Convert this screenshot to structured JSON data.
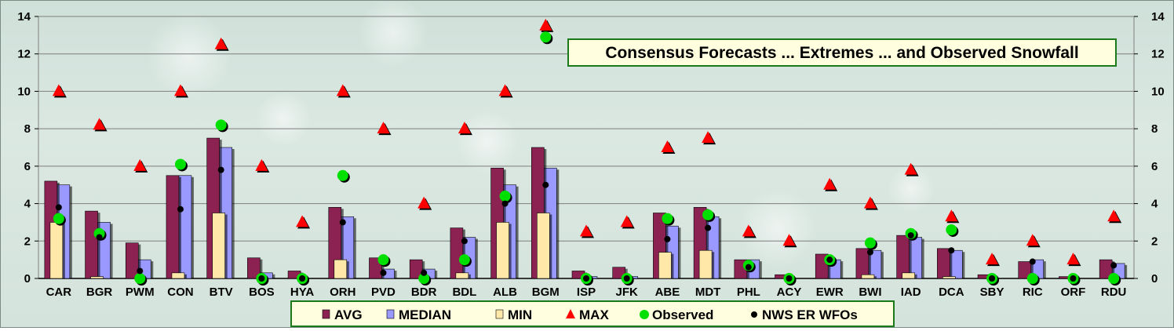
{
  "chart_data": {
    "type": "bar",
    "title": "Consensus Forecasts ... Extremes ... and Observed Snowfall",
    "ylim": [
      0,
      14
    ],
    "yticks": [
      0,
      2,
      4,
      6,
      8,
      10,
      12,
      14
    ],
    "grid": true,
    "legend_position": "bottom",
    "categories": [
      "CAR",
      "BGR",
      "PWM",
      "CON",
      "BTV",
      "BOS",
      "HYA",
      "ORH",
      "PVD",
      "BDR",
      "BDL",
      "ALB",
      "BGM",
      "ISP",
      "JFK",
      "ABE",
      "MDT",
      "PHL",
      "ACY",
      "EWR",
      "BWI",
      "IAD",
      "DCA",
      "SBY",
      "RIC",
      "ORF",
      "RDU"
    ],
    "series": [
      {
        "name": "AVG",
        "kind": "bar",
        "color": "#8b2252",
        "values": [
          5.2,
          3.6,
          1.9,
          5.5,
          7.5,
          1.1,
          0.4,
          3.8,
          1.1,
          1.0,
          2.7,
          5.9,
          7.0,
          0.4,
          0.6,
          3.5,
          3.8,
          1.0,
          0.2,
          1.3,
          1.6,
          2.3,
          1.6,
          0.2,
          0.9,
          0.1,
          1.0
        ]
      },
      {
        "name": "MEDIAN",
        "kind": "bar",
        "color": "#9999ff",
        "values": [
          5.0,
          3.0,
          1.0,
          5.5,
          7.0,
          0.3,
          0.0,
          3.3,
          0.5,
          0.5,
          2.2,
          5.0,
          5.9,
          0.1,
          0.1,
          2.8,
          3.3,
          1.0,
          0.0,
          1.0,
          1.5,
          2.2,
          1.5,
          0.0,
          1.0,
          0.0,
          0.8
        ]
      },
      {
        "name": "MIN",
        "kind": "bar",
        "color": "#ffe8a8",
        "values": [
          3.0,
          0.1,
          0.0,
          0.3,
          3.5,
          0.0,
          0.0,
          1.0,
          0.0,
          0.0,
          0.3,
          3.0,
          3.5,
          0.0,
          0.0,
          1.4,
          1.5,
          0.0,
          0.0,
          0.0,
          0.2,
          0.3,
          0.1,
          0.0,
          0.0,
          0.0,
          0.0
        ]
      },
      {
        "name": "MAX",
        "kind": "triangle",
        "color": "#ff0000",
        "values": [
          10,
          8.2,
          6,
          10,
          12.5,
          6,
          3,
          10,
          8,
          4,
          8,
          10,
          13.5,
          2.5,
          3,
          7,
          7.5,
          2.5,
          2,
          5,
          4,
          5.8,
          3.3,
          1,
          2,
          1,
          3.3
        ]
      },
      {
        "name": "Observed",
        "kind": "circle",
        "color": "#00e000",
        "values": [
          3.2,
          2.4,
          0.0,
          6.1,
          8.2,
          0.0,
          0.0,
          5.5,
          1.0,
          0.0,
          1.0,
          4.4,
          12.9,
          0.0,
          0.0,
          3.2,
          3.4,
          0.7,
          0.0,
          1.0,
          1.9,
          2.4,
          2.6,
          0.0,
          0.0,
          0.0,
          0.0
        ]
      },
      {
        "name": "NWS ER WFOs",
        "kind": "dot",
        "color": "#000000",
        "values": [
          3.8,
          2.2,
          0.4,
          3.7,
          5.8,
          0.0,
          0.0,
          3.0,
          0.3,
          0.3,
          2.0,
          4.0,
          5.0,
          0.0,
          0.0,
          2.1,
          2.7,
          0.6,
          0.0,
          1.0,
          1.4,
          2.3,
          1.5,
          0.0,
          0.9,
          0.0,
          0.7
        ]
      }
    ]
  }
}
